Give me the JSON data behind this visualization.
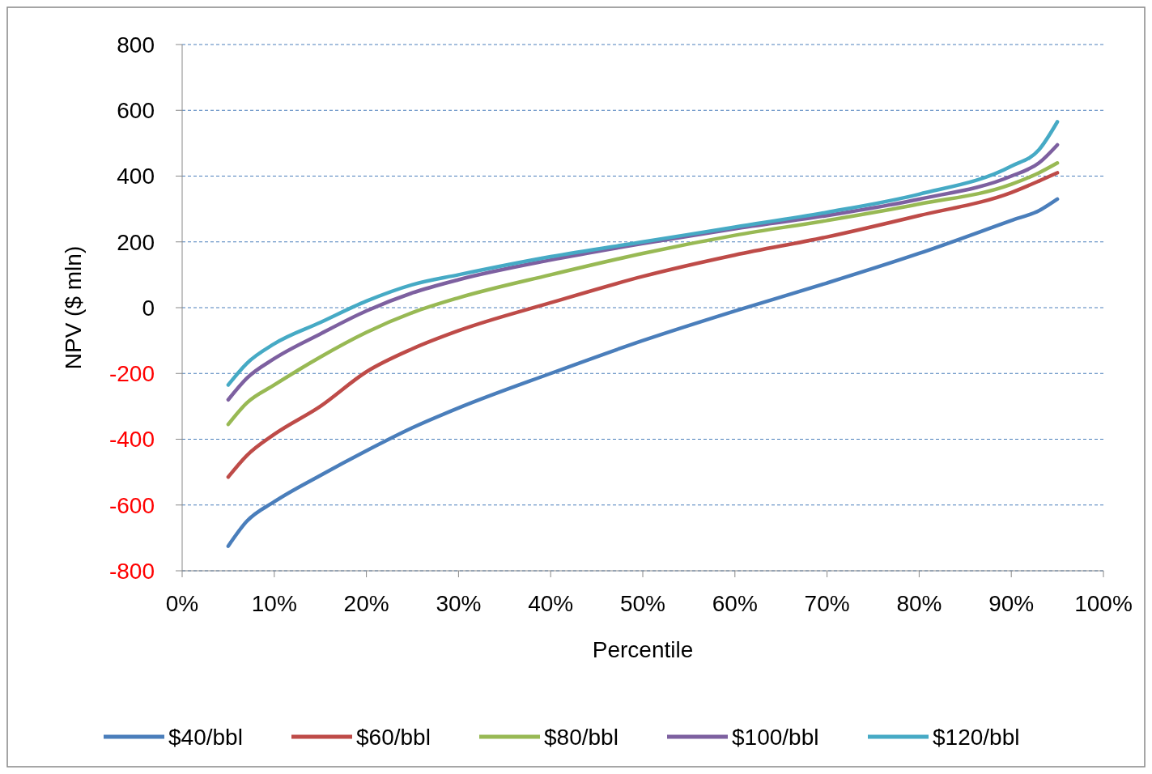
{
  "chart_data": {
    "type": "line",
    "xlabel": "Percentile",
    "ylabel": "NPV ($ mln)",
    "x": [
      5,
      7,
      10,
      15,
      20,
      25,
      30,
      40,
      50,
      60,
      70,
      80,
      90,
      93,
      95
    ],
    "series": [
      {
        "name": "$40/bbl",
        "color": "#4a7ebb",
        "values": [
          -725,
          -650,
          -590,
          -510,
          -435,
          -365,
          -305,
          -200,
          -100,
          -10,
          75,
          165,
          265,
          295,
          330
        ]
      },
      {
        "name": "$60/bbl",
        "color": "#be4b48",
        "values": [
          -515,
          -450,
          -385,
          -300,
          -195,
          -125,
          -70,
          15,
          95,
          160,
          215,
          280,
          350,
          385,
          410
        ]
      },
      {
        "name": "$80/bbl",
        "color": "#98b954",
        "values": [
          -355,
          -290,
          -235,
          -150,
          -75,
          -15,
          30,
          100,
          165,
          220,
          265,
          315,
          375,
          410,
          440
        ]
      },
      {
        "name": "$100/bbl",
        "color": "#7d60a0",
        "values": [
          -280,
          -215,
          -155,
          -80,
          -10,
          45,
          85,
          145,
          195,
          240,
          280,
          330,
          400,
          440,
          495
        ]
      },
      {
        "name": "$120/bbl",
        "color": "#46aac5",
        "values": [
          -235,
          -170,
          -110,
          -45,
          20,
          70,
          100,
          155,
          200,
          245,
          290,
          345,
          430,
          480,
          565
        ]
      }
    ],
    "xlim": [
      0,
      100
    ],
    "xticks": [
      {
        "value": 0,
        "label": "0%"
      },
      {
        "value": 10,
        "label": "10%"
      },
      {
        "value": 20,
        "label": "20%"
      },
      {
        "value": 30,
        "label": "30%"
      },
      {
        "value": 40,
        "label": "40%"
      },
      {
        "value": 50,
        "label": "50%"
      },
      {
        "value": 60,
        "label": "60%"
      },
      {
        "value": 70,
        "label": "70%"
      },
      {
        "value": 80,
        "label": "80%"
      },
      {
        "value": 90,
        "label": "90%"
      },
      {
        "value": 100,
        "label": "100%"
      }
    ],
    "ylim": [
      -800,
      800
    ],
    "yticks": [
      -800,
      -600,
      -400,
      -200,
      0,
      200,
      400,
      600,
      800
    ],
    "grid": "y",
    "legend": "bottom",
    "line_style": "solid",
    "marker": "none"
  }
}
